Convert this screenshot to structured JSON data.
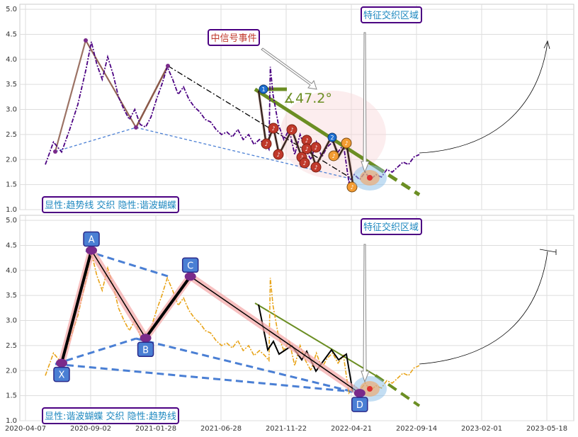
{
  "chart_data": [
    {
      "type": "line",
      "panel": "top",
      "ylim": [
        1.0,
        5.1
      ],
      "y_ticks": [
        "1.0",
        "1.5",
        "2.0",
        "2.5",
        "3.0",
        "3.5",
        "4.0",
        "4.5",
        "5.0"
      ],
      "grid": true,
      "price_color": "#4b0082",
      "price_series": [
        [
          0,
          1.9
        ],
        [
          6,
          2.35
        ],
        [
          12,
          2.15
        ],
        [
          18,
          2.6
        ],
        [
          24,
          3.1
        ],
        [
          30,
          3.8
        ],
        [
          34,
          4.35
        ],
        [
          38,
          3.9
        ],
        [
          42,
          3.6
        ],
        [
          46,
          4.05
        ],
        [
          50,
          3.7
        ],
        [
          54,
          3.25
        ],
        [
          58,
          3.0
        ],
        [
          62,
          2.8
        ],
        [
          66,
          3.0
        ],
        [
          70,
          2.7
        ],
        [
          74,
          2.65
        ],
        [
          78,
          2.85
        ],
        [
          82,
          3.2
        ],
        [
          86,
          3.5
        ],
        [
          90,
          3.85
        ],
        [
          94,
          3.6
        ],
        [
          98,
          3.3
        ],
        [
          102,
          3.45
        ],
        [
          106,
          3.2
        ],
        [
          110,
          3.05
        ],
        [
          114,
          2.95
        ],
        [
          118,
          2.8
        ],
        [
          122,
          2.75
        ],
        [
          126,
          2.6
        ],
        [
          130,
          2.5
        ],
        [
          134,
          2.55
        ],
        [
          138,
          2.45
        ],
        [
          142,
          2.6
        ],
        [
          146,
          2.4
        ],
        [
          150,
          2.5
        ],
        [
          154,
          2.3
        ],
        [
          158,
          2.4
        ],
        [
          162,
          2.3
        ],
        [
          165,
          2.2
        ],
        [
          166,
          3.85
        ],
        [
          168,
          3.3
        ],
        [
          172,
          2.7
        ],
        [
          176,
          2.4
        ],
        [
          180,
          2.6
        ],
        [
          184,
          2.1
        ],
        [
          188,
          2.5
        ],
        [
          192,
          2.2
        ],
        [
          196,
          2.0
        ],
        [
          200,
          2.35
        ],
        [
          204,
          2.05
        ],
        [
          208,
          2.25
        ],
        [
          212,
          2.35
        ],
        [
          216,
          2.15
        ],
        [
          220,
          2.3
        ],
        [
          224,
          1.55
        ],
        [
          228,
          1.7
        ],
        [
          232,
          1.6
        ],
        [
          236,
          1.75
        ],
        [
          240,
          1.6
        ],
        [
          244,
          1.7
        ],
        [
          248,
          1.65
        ],
        [
          252,
          1.8
        ],
        [
          256,
          1.75
        ],
        [
          260,
          1.85
        ],
        [
          264,
          1.95
        ],
        [
          268,
          1.9
        ],
        [
          272,
          2.05
        ],
        [
          276,
          2.1
        ]
      ],
      "extra_series_color": "#ff8c00",
      "annotations": {
        "signal_event": "中信号事件",
        "feature_zone": "特征交织区域",
        "angle_label": "∡47.2°",
        "legend_note": "显性:趋势线 交织 隐性:谐波蝴蝶"
      }
    },
    {
      "type": "line",
      "panel": "bottom",
      "ylim": [
        1.0,
        5.1
      ],
      "y_ticks": [
        "1.0",
        "1.5",
        "2.0",
        "2.5",
        "3.0",
        "3.5",
        "4.0",
        "4.5",
        "5.0"
      ],
      "x_ticks": [
        "2020-04-07",
        "2020-09-02",
        "2021-01-28",
        "2021-06-28",
        "2021-11-22",
        "2022-04-21",
        "2022-09-14",
        "2023-02-01",
        "2023-05-18"
      ],
      "grid": true,
      "price_color": "#e8a317",
      "harmonic_points": [
        {
          "name": "X",
          "t": 12,
          "y": 2.15
        },
        {
          "name": "A",
          "t": 34,
          "y": 4.4
        },
        {
          "name": "B",
          "t": 74,
          "y": 2.65
        },
        {
          "name": "C",
          "t": 107,
          "y": 3.88
        },
        {
          "name": "D",
          "t": 232,
          "y": 1.55
        }
      ],
      "annotations": {
        "feature_zone": "特征交织区域",
        "legend_note": "显性:谐波蝴蝶 交织 隐性:趋势线"
      }
    }
  ]
}
